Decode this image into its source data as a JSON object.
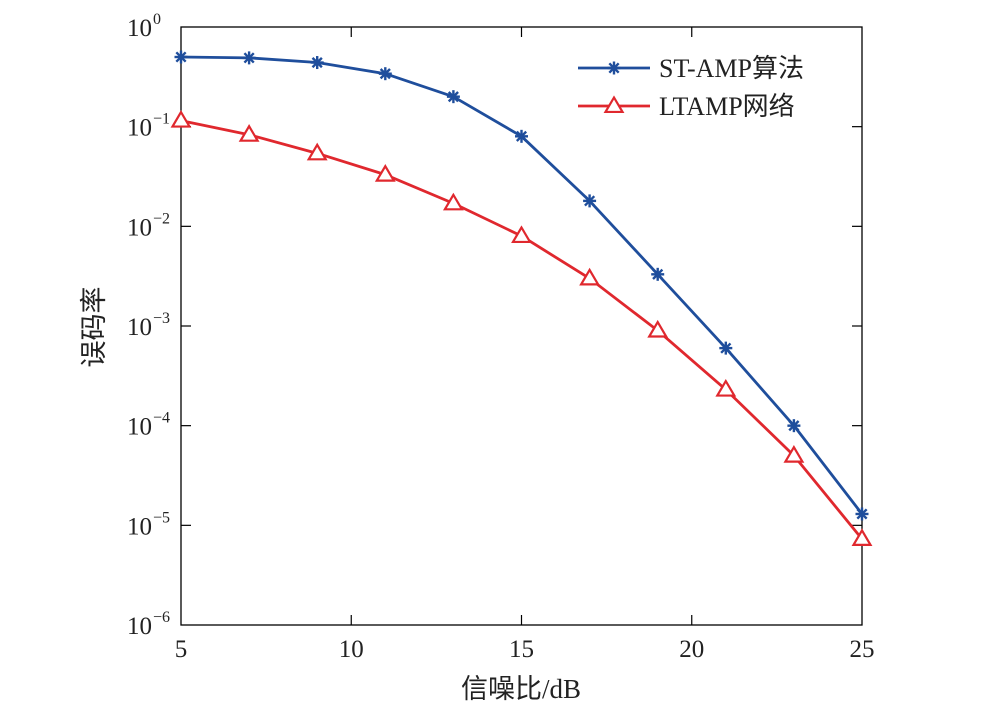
{
  "chart_data": {
    "type": "line",
    "xlabel": "信噪比/dB",
    "ylabel": "误码率",
    "xlim": [
      5,
      25
    ],
    "ylim": [
      1e-06,
      1
    ],
    "yscale": "log",
    "x_ticks": [
      "5",
      "10",
      "15",
      "20",
      "25"
    ],
    "y_ticks": [
      {
        "base": "10",
        "exp": "0"
      },
      {
        "base": "10",
        "exp": "−1"
      },
      {
        "base": "10",
        "exp": "−2"
      },
      {
        "base": "10",
        "exp": "−3"
      },
      {
        "base": "10",
        "exp": "−4"
      },
      {
        "base": "10",
        "exp": "−5"
      },
      {
        "base": "10",
        "exp": "−6"
      }
    ],
    "grid": false,
    "legend_position": "top-right",
    "x": [
      5,
      7,
      9,
      11,
      13,
      15,
      17,
      19,
      21,
      23,
      25
    ],
    "series": [
      {
        "name": "ST-AMP算法",
        "color": "#1f4e9c",
        "marker": "asterisk",
        "values": [
          0.5,
          0.49,
          0.44,
          0.34,
          0.2,
          0.08,
          0.018,
          0.0033,
          0.0006,
          0.0001,
          1.3e-05
        ]
      },
      {
        "name": "LTAMP网络",
        "color": "#e0282e",
        "marker": "triangle",
        "values": [
          0.115,
          0.083,
          0.054,
          0.033,
          0.017,
          0.008,
          0.003,
          0.0009,
          0.00023,
          5e-05,
          7.3e-06
        ]
      }
    ]
  }
}
